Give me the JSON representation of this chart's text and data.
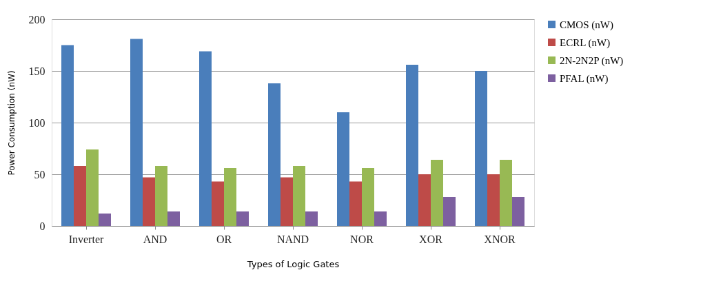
{
  "chart_data": {
    "type": "bar",
    "xlabel": "Types of Logic Gates",
    "ylabel": "Power Consumption (nW)",
    "categories": [
      "Inverter",
      "AND",
      "OR",
      "NAND",
      "NOR",
      "XOR",
      "XNOR"
    ],
    "series": [
      {
        "name": "CMOS (nW)",
        "color": "#4a7ebb",
        "values": [
          175,
          181,
          169,
          138,
          110,
          156,
          150
        ]
      },
      {
        "name": "ECRL (nW)",
        "color": "#be4b48",
        "values": [
          58,
          47,
          43,
          47,
          43,
          50,
          50
        ]
      },
      {
        "name": "2N-2N2P (nW)",
        "color": "#98b954",
        "values": [
          74,
          58,
          56,
          58,
          56,
          64,
          64
        ]
      },
      {
        "name": "PFAL (nW)",
        "color": "#7d60a0",
        "values": [
          12,
          14,
          14,
          14,
          14,
          28,
          28
        ]
      }
    ],
    "ylim": [
      0,
      200
    ],
    "yticks": [
      0,
      50,
      100,
      150,
      200
    ],
    "grid": "y",
    "legend": "right"
  }
}
